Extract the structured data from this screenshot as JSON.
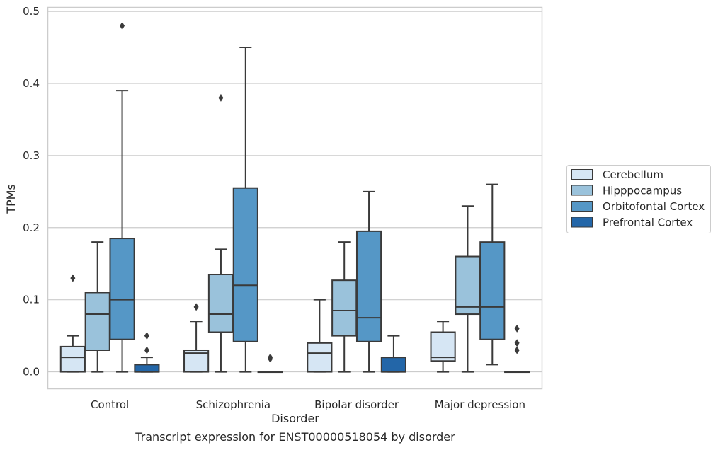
{
  "chart_data": {
    "type": "box",
    "title": "",
    "caption": "Transcript expression for ENST00000518054 by disorder",
    "xlabel": "Disorder",
    "ylabel": "TPMs",
    "ylim": [
      -0.023,
      0.505
    ],
    "yticks": [
      "0.0",
      "0.1",
      "0.2",
      "0.3",
      "0.4",
      "0.5"
    ],
    "ytick_values": [
      0,
      0.1,
      0.2,
      0.3,
      0.4,
      0.5
    ],
    "grid": "horizontal",
    "legend_position": "right",
    "categories": [
      "Control",
      "Schizophrenia",
      "Bipolar disorder",
      "Major depression"
    ],
    "series": [
      {
        "name": "Cerebellum",
        "color": "#d6e6f4",
        "boxes": [
          {
            "min": 0.0,
            "q1": 0.0,
            "median": 0.02,
            "q3": 0.035,
            "max": 0.05,
            "outliers": [
              0.13
            ]
          },
          {
            "min": 0.0,
            "q1": 0.0,
            "median": 0.026,
            "q3": 0.03,
            "max": 0.07,
            "outliers": [
              0.09
            ]
          },
          {
            "min": 0.0,
            "q1": 0.0,
            "median": 0.026,
            "q3": 0.04,
            "max": 0.1,
            "outliers": []
          },
          {
            "min": 0.0,
            "q1": 0.015,
            "median": 0.02,
            "q3": 0.055,
            "max": 0.07,
            "outliers": []
          }
        ]
      },
      {
        "name": "Hipppocampus",
        "color": "#9ac2db",
        "boxes": [
          {
            "min": 0.0,
            "q1": 0.03,
            "median": 0.08,
            "q3": 0.11,
            "max": 0.18,
            "outliers": []
          },
          {
            "min": 0.0,
            "q1": 0.055,
            "median": 0.08,
            "q3": 0.135,
            "max": 0.17,
            "outliers": [
              0.38
            ]
          },
          {
            "min": 0.0,
            "q1": 0.05,
            "median": 0.085,
            "q3": 0.127,
            "max": 0.18,
            "outliers": []
          },
          {
            "min": 0.0,
            "q1": 0.08,
            "median": 0.09,
            "q3": 0.16,
            "max": 0.23,
            "outliers": []
          }
        ]
      },
      {
        "name": "Orbitofontal Cortex",
        "color": "#5597c6",
        "boxes": [
          {
            "min": 0.0,
            "q1": 0.045,
            "median": 0.1,
            "q3": 0.185,
            "max": 0.39,
            "outliers": [
              0.48
            ]
          },
          {
            "min": 0.0,
            "q1": 0.042,
            "median": 0.12,
            "q3": 0.255,
            "max": 0.45,
            "outliers": []
          },
          {
            "min": 0.0,
            "q1": 0.042,
            "median": 0.075,
            "q3": 0.195,
            "max": 0.25,
            "outliers": []
          },
          {
            "min": 0.01,
            "q1": 0.045,
            "median": 0.09,
            "q3": 0.18,
            "max": 0.26,
            "outliers": []
          }
        ]
      },
      {
        "name": "Prefrontal Cortex",
        "color": "#2366a8",
        "boxes": [
          {
            "min": 0.0,
            "q1": 0.0,
            "median": 0.0,
            "q3": 0.01,
            "max": 0.02,
            "outliers": [
              0.03,
              0.05
            ]
          },
          {
            "min": 0.0,
            "q1": 0.0,
            "median": 0.0,
            "q3": 0.0,
            "max": 0.0,
            "outliers": [
              0.018,
              0.02
            ]
          },
          {
            "min": 0.0,
            "q1": 0.0,
            "median": 0.0,
            "q3": 0.02,
            "max": 0.05,
            "outliers": []
          },
          {
            "min": 0.0,
            "q1": 0.0,
            "median": 0.0,
            "q3": 0.0,
            "max": 0.0,
            "outliers": [
              0.03,
              0.04,
              0.06
            ]
          }
        ]
      }
    ]
  },
  "colors": {
    "edge": "#3a3a3a",
    "grid": "#cccccc",
    "frame": "#cccccc"
  }
}
